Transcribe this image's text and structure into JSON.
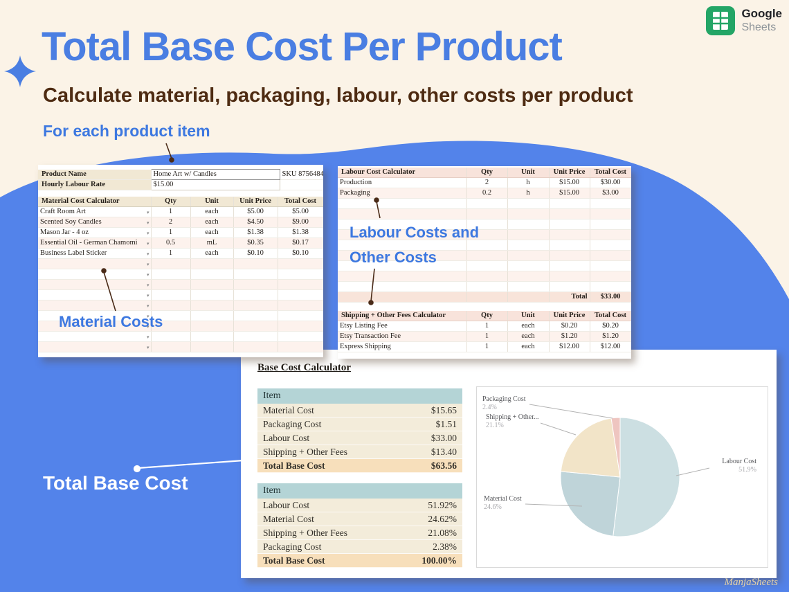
{
  "branding": {
    "logo_title": "Google",
    "logo_subtitle": "Sheets",
    "watermark": "ManjaSheets"
  },
  "header": {
    "title": "Total Base Cost Per Product",
    "subtitle": "Calculate material, packaging, labour, other costs per product"
  },
  "annotations": {
    "for_each": "For each product item",
    "material_costs": "Material Costs",
    "labour_other_line1": "Labour Costs and",
    "labour_other_line2": "Other Costs",
    "total_base_cost": "Total Base Cost"
  },
  "product_sheet": {
    "product_name_label": "Product Name",
    "product_name_value": "Home Art w/ Candles",
    "sku": "SKU 8756484",
    "hourly_rate_label": "Hourly Labour Rate",
    "hourly_rate_value": "$15.00",
    "material_table": {
      "headers": [
        "Material Cost Calculator",
        "Qty",
        "Unit",
        "Unit Price",
        "Total Cost"
      ],
      "rows": [
        [
          "Craft Room Art",
          "1",
          "each",
          "$5.00",
          "$5.00"
        ],
        [
          "Scented Soy Candles",
          "2",
          "each",
          "$4.50",
          "$9.00"
        ],
        [
          "Mason Jar - 4 oz",
          "1",
          "each",
          "$1.38",
          "$1.38"
        ],
        [
          "Essential Oil - German Chamomi",
          "0.5",
          "mL",
          "$0.35",
          "$0.17"
        ],
        [
          "Business Label Sticker",
          "1",
          "each",
          "$0.10",
          "$0.10"
        ]
      ],
      "empty_row_count": 9
    }
  },
  "labour_sheet": {
    "labour_table": {
      "headers": [
        "Labour Cost Calculator",
        "Qty",
        "Unit",
        "Unit Price",
        "Total Cost"
      ],
      "rows": [
        [
          "Production",
          "2",
          "h",
          "$15.00",
          "$30.00"
        ],
        [
          "Packaging",
          "0.2",
          "h",
          "$15.00",
          "$3.00"
        ]
      ],
      "empty_row_count": 9,
      "total_label": "Total",
      "total_value": "$33.00"
    },
    "fees_table": {
      "headers": [
        "Shipping + Other Fees Calculator",
        "Qty",
        "Unit",
        "Unit Price",
        "Total Cost"
      ],
      "rows": [
        [
          "Etsy Listing Fee",
          "1",
          "each",
          "$0.20",
          "$0.20"
        ],
        [
          "Etsy Transaction Fee",
          "1",
          "each",
          "$1.20",
          "$1.20"
        ],
        [
          "Express Shipping",
          "1",
          "each",
          "$12.00",
          "$12.00"
        ]
      ]
    }
  },
  "base_cost_panel": {
    "title": "Base Cost Calculator",
    "cost_table": {
      "header": "Item",
      "rows": [
        [
          "Material Cost",
          "$15.65"
        ],
        [
          "Packaging Cost",
          "$1.51"
        ],
        [
          "Labour Cost",
          "$33.00"
        ],
        [
          "Shipping + Other Fees",
          "$13.40"
        ]
      ],
      "total_row": [
        "Total Base Cost",
        "$63.56"
      ]
    },
    "percent_table": {
      "header": "Item",
      "rows": [
        [
          "Labour Cost",
          "51.92%"
        ],
        [
          "Material Cost",
          "24.62%"
        ],
        [
          "Shipping + Other Fees",
          "21.08%"
        ],
        [
          "Packaging Cost",
          "2.38%"
        ]
      ],
      "total_row": [
        "Total Base Cost",
        "100.00%"
      ]
    }
  },
  "chart_data": {
    "type": "pie",
    "labels": [
      "Labour Cost",
      "Material Cost",
      "Shipping + Other...",
      "Packaging Cost"
    ],
    "values": [
      51.9,
      24.6,
      21.1,
      2.4
    ],
    "label_percents": [
      "51.9%",
      "24.6%",
      "21.1%",
      "2.4%"
    ],
    "colors": [
      "#ccdfe2",
      "#bfd4d9",
      "#f2e4c8",
      "#eec5c0"
    ],
    "start_angle_deg": 0,
    "direction": "clockwise",
    "legend_position": "none"
  },
  "colors": {
    "accent_blue": "#4a7ee2",
    "blob_blue": "#5383ea",
    "dark_brown": "#4e2b12",
    "teal_header": "#b4d4d6",
    "tan_total": "#f7dfbb",
    "pink_header": "#f8e3db",
    "cream_header": "#f1e8d4",
    "sheets_green": "#23a566"
  }
}
